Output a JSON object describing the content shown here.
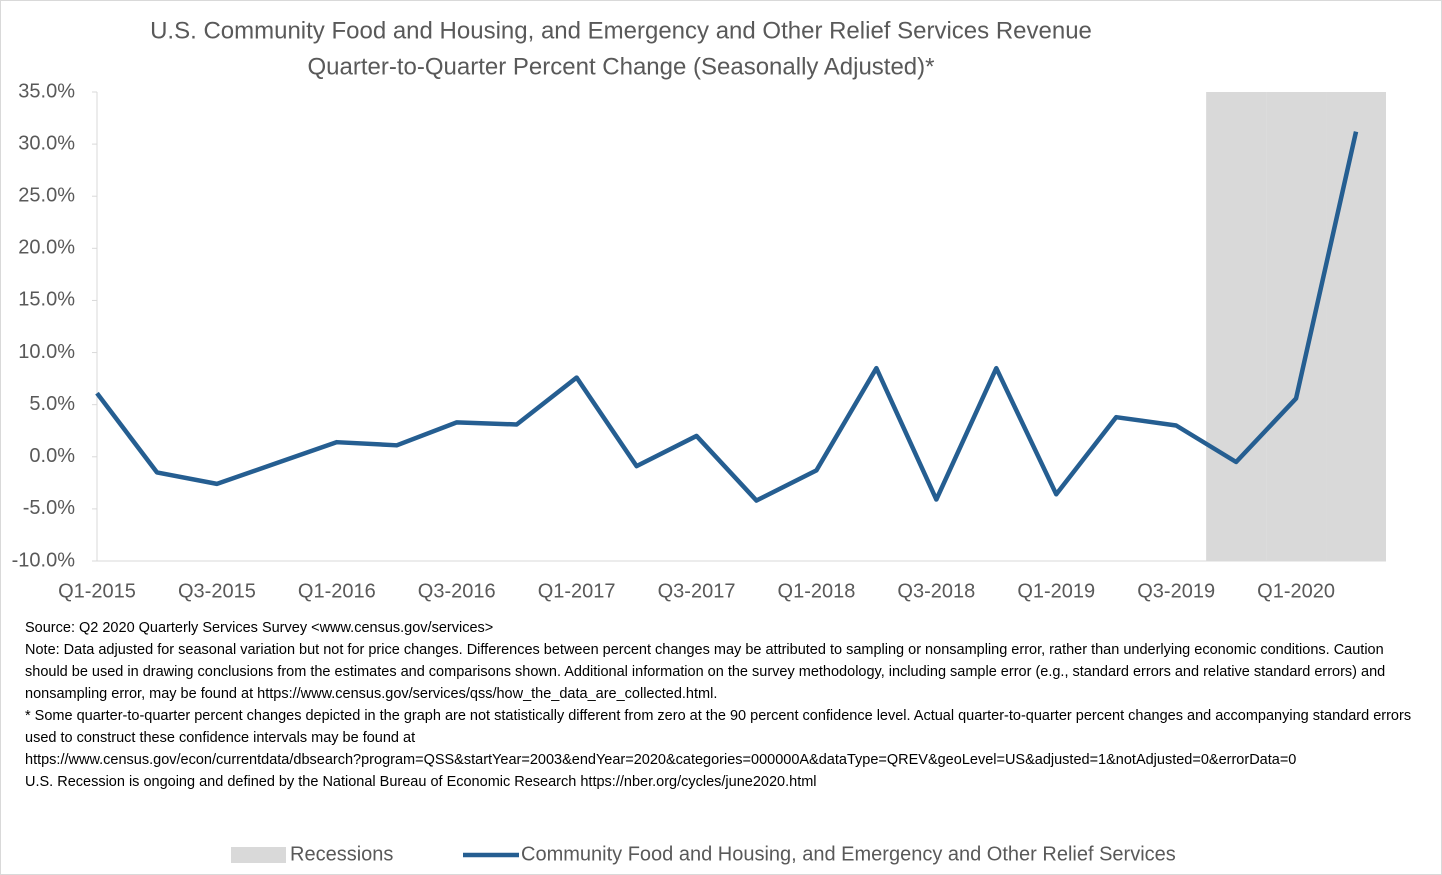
{
  "chart_data": {
    "type": "line",
    "title": "U.S. Community Food and Housing, and Emergency and Other Relief Services Revenue",
    "subtitle": "Quarter-to-Quarter Percent Change (Seasonally Adjusted)*",
    "categories": [
      "Q1-2015",
      null,
      "Q3-2015",
      null,
      "Q1-2016",
      null,
      "Q3-2016",
      null,
      "Q1-2017",
      null,
      "Q3-2017",
      null,
      "Q1-2018",
      null,
      "Q3-2018",
      null,
      "Q1-2019",
      null,
      "Q3-2019",
      null,
      "Q1-2020",
      null
    ],
    "series": [
      {
        "name": "Recessions",
        "type": "bar",
        "color": "#d9d9d9",
        "values": [
          null,
          null,
          null,
          null,
          null,
          null,
          null,
          null,
          null,
          null,
          null,
          null,
          null,
          null,
          null,
          null,
          null,
          null,
          null,
          1,
          1,
          1
        ]
      },
      {
        "name": "Community Food and Housing, and Emergency and Other Relief Services",
        "type": "line",
        "color": "#255e91",
        "values": [
          6.1,
          -1.5,
          -2.6,
          -0.6,
          1.4,
          1.1,
          3.3,
          3.1,
          7.6,
          -0.9,
          2.0,
          -4.2,
          -1.3,
          8.5,
          -4.1,
          8.5,
          -3.6,
          3.8,
          3.0,
          -0.5,
          5.6,
          31.2
        ]
      }
    ],
    "ylim": [
      -10,
      35
    ],
    "yticks": [
      {
        "value": -10,
        "label": "-10.0%"
      },
      {
        "value": -5,
        "label": "-5.0%"
      },
      {
        "value": 0,
        "label": "0.0%"
      },
      {
        "value": 5,
        "label": "5.0%"
      },
      {
        "value": 10,
        "label": "10.0%"
      },
      {
        "value": 15,
        "label": "15.0%"
      },
      {
        "value": 20,
        "label": "20.0%"
      },
      {
        "value": 25,
        "label": "25.0%"
      },
      {
        "value": 30,
        "label": "30.0%"
      },
      {
        "value": 35,
        "label": "35.0%"
      }
    ],
    "grid": false,
    "legend": "bottom",
    "notes": [
      "Source: Q2 2020 Quarterly Services Survey <www.census.gov/services>",
      "Note: Data adjusted for seasonal variation but not for price changes. Differences between percent changes may be attributed to sampling or nonsampling error, rather than underlying economic conditions. Caution should be used in drawing conclusions from the estimates and comparisons shown. Additional information on the survey methodology, including sample error (e.g., standard errors and relative standard errors) and nonsampling error, may be found at https://www.census.gov/services/qss/how_the_data_are_collected.html.",
      "* Some quarter-to-quarter percent changes depicted in the graph are not statistically different from zero at the 90 percent confidence level. Actual quarter-to-quarter percent changes and accompanying standard errors used to construct these confidence intervals may be found at",
      "https://www.census.gov/econ/currentdata/dbsearch?program=QSS&startYear=2003&endYear=2020&categories=000000A&dataType=QREV&geoLevel=US&adjusted=1&notAdjusted=0&errorData=0",
      "U.S. Recession is ongoing and defined by the National Bureau of Economic Research https://nber.org/cycles/june2020.html"
    ]
  }
}
